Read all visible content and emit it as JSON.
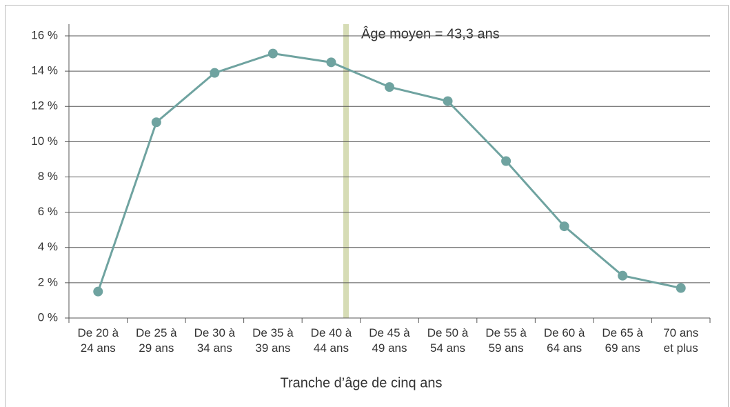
{
  "chart_data": {
    "type": "line",
    "annotation": "Âge moyen = 43,3 ans",
    "x_label": "Tranche d’âge de cinq ans",
    "categories": [
      "De 20 à\n24 ans",
      "De 25 à\n29 ans",
      "De 30 à\n34 ans",
      "De 35 à\n39 ans",
      "De 40 à\n44 ans",
      "De 45 à\n49 ans",
      "De 50 à\n54 ans",
      "De 55 à\n59 ans",
      "De 60 à\n64 ans",
      "De 65 à\n69 ans",
      "70 ans\net plus"
    ],
    "values": [
      1.5,
      11.1,
      13.9,
      15.0,
      14.5,
      13.1,
      12.3,
      8.9,
      5.2,
      2.4,
      1.7
    ],
    "color": "#6fa3a0",
    "ylim": [
      0,
      16
    ],
    "yticks": [
      {
        "value": 0,
        "label": "0 %"
      },
      {
        "value": 2,
        "label": "2 %"
      },
      {
        "value": 4,
        "label": "4 %"
      },
      {
        "value": 6,
        "label": "6 %"
      },
      {
        "value": 8,
        "label": "8 %"
      },
      {
        "value": 10,
        "label": "10 %"
      },
      {
        "value": 12,
        "label": "12 %"
      },
      {
        "value": 14,
        "label": "14 %"
      },
      {
        "value": 16,
        "label": "16 %"
      }
    ],
    "grid": true
  }
}
